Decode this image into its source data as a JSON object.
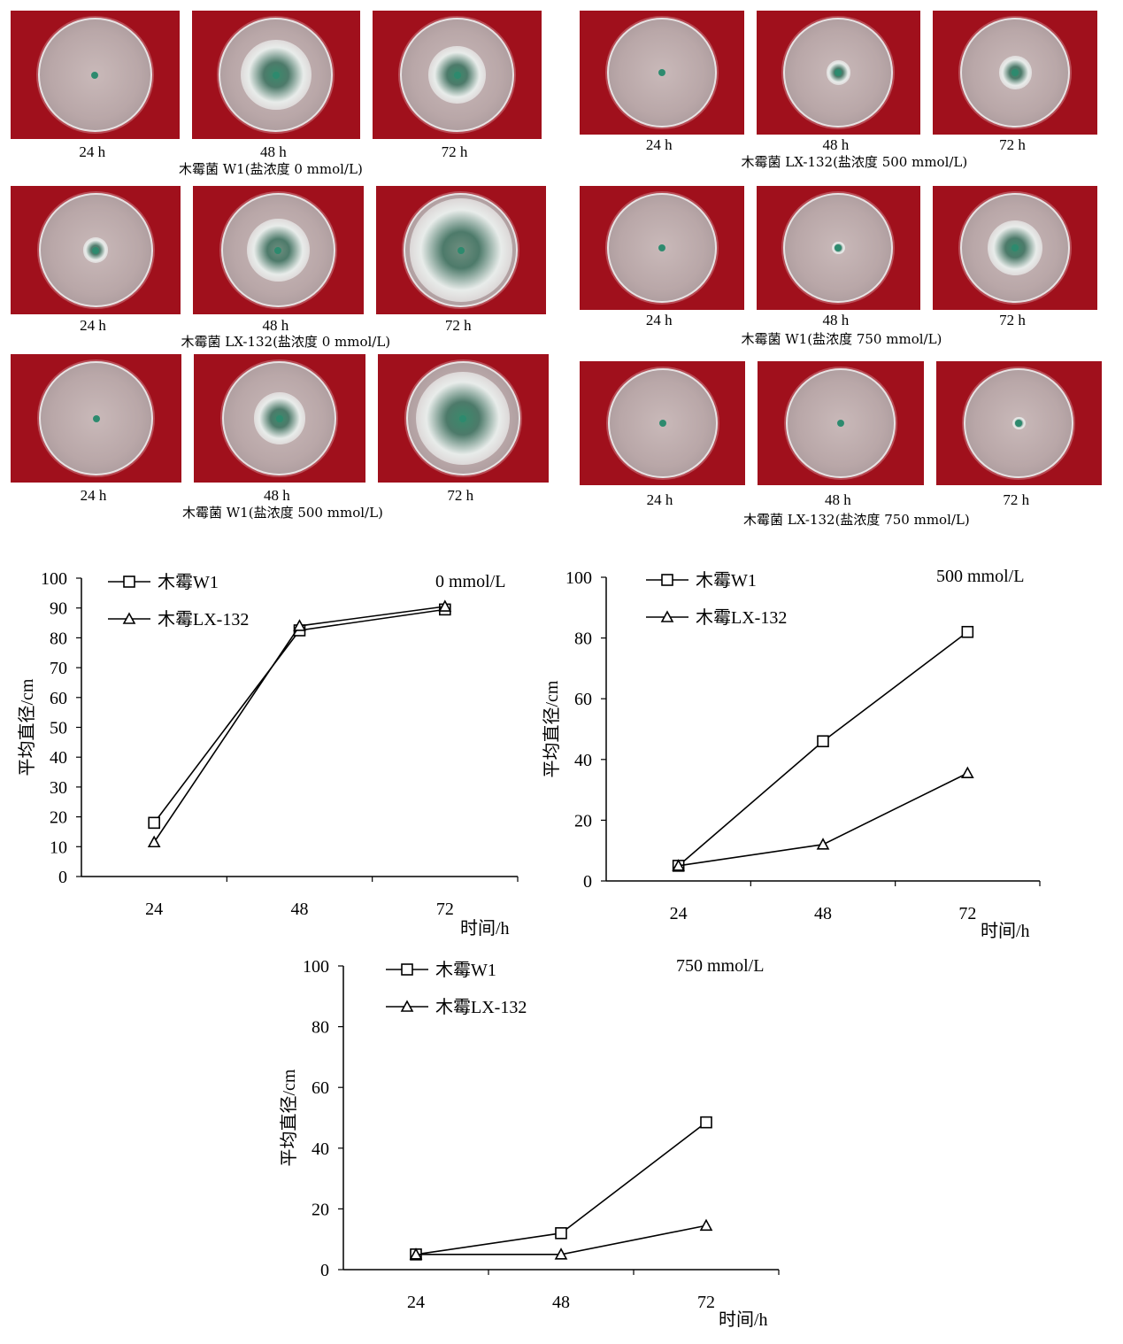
{
  "photo_panels": [
    {
      "caption": "木霉菌  W1(盐浓度 0 mmol/L)",
      "times": [
        "24 h",
        "48 h",
        "72 h"
      ],
      "growth": [
        0.05,
        0.62,
        0.5
      ],
      "color": "green"
    },
    {
      "caption": "木霉菌  LX-132(盐浓度 500 mmol/L)",
      "times": [
        "24 h",
        "48 h",
        "72 h"
      ],
      "growth": [
        0.04,
        0.22,
        0.3
      ],
      "color": "green"
    },
    {
      "caption": "木霉菌  LX-132(盐浓度 0 mmol/L)",
      "times": [
        "24 h",
        "48 h",
        "72 h"
      ],
      "growth": [
        0.22,
        0.55,
        0.9
      ],
      "color": "white"
    },
    {
      "caption": "木霉菌  W1(盐浓度 750 mmol/L)",
      "times": [
        "24 h",
        "48 h",
        "72 h"
      ],
      "growth": [
        0.05,
        0.12,
        0.5
      ],
      "color": "green"
    },
    {
      "caption": "木霉菌  W1(盐浓度 500 mmol/L)",
      "times": [
        "24 h",
        "48 h",
        "72 h"
      ],
      "growth": [
        0.05,
        0.45,
        0.82
      ],
      "color": "green"
    },
    {
      "caption": "木霉菌  LX-132(盐浓度 750 mmol/L)",
      "times": [
        "24 h",
        "48 h",
        "72 h"
      ],
      "growth": [
        0.05,
        0.05,
        0.12
      ],
      "color": "green"
    }
  ],
  "chart_data": [
    {
      "type": "line",
      "title": "0 mmol/L",
      "xlabel": "时间/h",
      "ylabel": "平均直径/cm",
      "categories": [
        "24",
        "48",
        "72"
      ],
      "ylim": [
        0,
        100
      ],
      "yticks": [
        0,
        10,
        20,
        30,
        40,
        50,
        60,
        70,
        80,
        90,
        100
      ],
      "legend_position": "top-left",
      "series": [
        {
          "name": "木霉W1",
          "marker": "square",
          "values": [
            18,
            82.5,
            89.5
          ]
        },
        {
          "name": "木霉LX-132",
          "marker": "triangle",
          "values": [
            11.5,
            84,
            90.5
          ]
        }
      ]
    },
    {
      "type": "line",
      "title": "500 mmol/L",
      "xlabel": "时间/h",
      "ylabel": "平均直径/cm",
      "categories": [
        "24",
        "48",
        "72"
      ],
      "ylim": [
        0,
        100
      ],
      "yticks": [
        0,
        20,
        40,
        60,
        80,
        100
      ],
      "legend_position": "top-left",
      "series": [
        {
          "name": "木霉W1",
          "marker": "square",
          "values": [
            5,
            46,
            82
          ]
        },
        {
          "name": "木霉LX-132",
          "marker": "triangle",
          "values": [
            5,
            12,
            35.5
          ]
        }
      ]
    },
    {
      "type": "line",
      "title": "750 mmol/L",
      "xlabel": "时间/h",
      "ylabel": "平均直径/cm",
      "categories": [
        "24",
        "48",
        "72"
      ],
      "ylim": [
        0,
        100
      ],
      "yticks": [
        0,
        20,
        40,
        60,
        80,
        100
      ],
      "legend_position": "top-left",
      "series": [
        {
          "name": "木霉W1",
          "marker": "square",
          "values": [
            5,
            12,
            48.5
          ]
        },
        {
          "name": "木霉LX-132",
          "marker": "triangle",
          "values": [
            5,
            5,
            14.5
          ]
        }
      ]
    }
  ]
}
